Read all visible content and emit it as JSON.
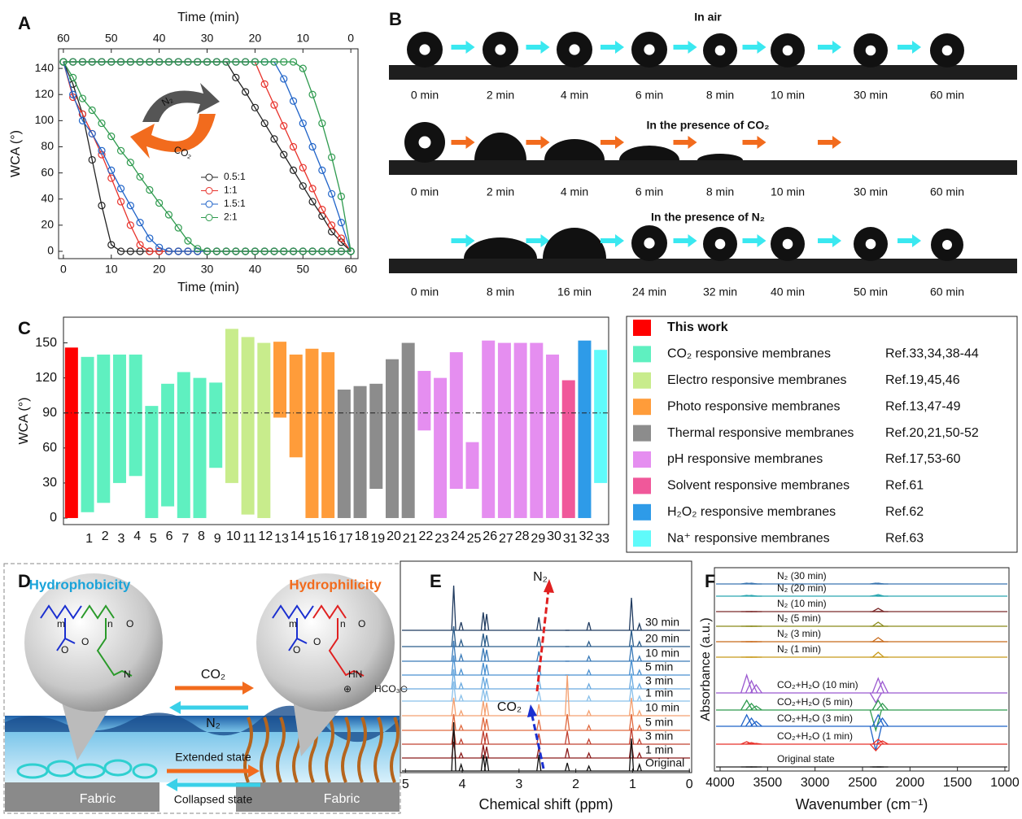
{
  "panel_labels": [
    "A",
    "B",
    "C",
    "D",
    "E",
    "F"
  ],
  "chart_data": [
    {
      "type": "line",
      "x_label": "Time (min)",
      "x2_label": "Time (min)",
      "y_label": "WCA (°)",
      "x": [
        0,
        2,
        4,
        6,
        8,
        10,
        12,
        14,
        16,
        18,
        20,
        22,
        24,
        26,
        28,
        30,
        32,
        34,
        36,
        38,
        40,
        42,
        44,
        46,
        48,
        50,
        52,
        54,
        56,
        58,
        60
      ],
      "xlim": [
        -1,
        61.5
      ],
      "xticks": [
        0,
        10,
        20,
        30,
        40,
        50,
        60
      ],
      "x2ticks": [
        {
          "value": 0,
          "label": "60"
        },
        {
          "value": 10,
          "label": "50"
        },
        {
          "value": 20,
          "label": "40"
        },
        {
          "value": 30,
          "label": "30"
        },
        {
          "value": 40,
          "label": "20"
        },
        {
          "value": 50,
          "label": "10"
        },
        {
          "value": 60,
          "label": "0"
        }
      ],
      "ylim": [
        -5.6,
        155
      ],
      "yticks": [
        0,
        20,
        40,
        60,
        80,
        100,
        120,
        140
      ],
      "annotations": [
        "N₂",
        "CO₂"
      ],
      "series": [
        {
          "name": "0.5:1",
          "color": "#222222",
          "values": [
            145,
            128,
            105,
            70,
            35,
            5,
            0,
            0,
            0,
            0,
            0,
            0,
            0,
            0,
            0,
            0,
            0,
            0,
            0,
            0,
            0,
            0,
            0,
            0,
            0,
            0,
            0,
            0,
            0,
            0,
            0
          ],
          "values2": [
            145,
            145,
            145,
            145,
            145,
            145,
            145,
            145,
            145,
            145,
            145,
            145,
            145,
            145,
            145,
            145,
            145,
            145,
            133,
            122,
            110,
            98,
            86,
            74,
            62,
            50,
            38,
            27,
            15,
            7,
            0
          ]
        },
        {
          "name": "1:1",
          "color": "#e8322b",
          "values": [
            145,
            118,
            105,
            90,
            74,
            56,
            38,
            20,
            5,
            0,
            0,
            0,
            0,
            0,
            0,
            0,
            0,
            0,
            0,
            0,
            0,
            0,
            0,
            0,
            0,
            0,
            0,
            0,
            0,
            0,
            0
          ],
          "values2": [
            145,
            145,
            145,
            145,
            145,
            145,
            145,
            145,
            145,
            145,
            145,
            145,
            145,
            145,
            145,
            145,
            145,
            145,
            145,
            145,
            145,
            128,
            112,
            96,
            80,
            64,
            48,
            32,
            20,
            10,
            0
          ]
        },
        {
          "name": "1.5:1",
          "color": "#1f63c8",
          "values": [
            145,
            120,
            100,
            90,
            77,
            62,
            48,
            35,
            22,
            10,
            3,
            0,
            0,
            0,
            0,
            0,
            0,
            0,
            0,
            0,
            0,
            0,
            0,
            0,
            0,
            0,
            0,
            0,
            0,
            0,
            0
          ],
          "values2": [
            145,
            145,
            145,
            145,
            145,
            145,
            145,
            145,
            145,
            145,
            145,
            145,
            145,
            145,
            145,
            145,
            145,
            145,
            145,
            145,
            145,
            145,
            145,
            132,
            115,
            98,
            80,
            62,
            44,
            22,
            0
          ]
        },
        {
          "name": "2:1",
          "color": "#2e9a4e",
          "values": [
            145,
            133,
            117,
            108,
            98,
            88,
            77,
            68,
            57,
            47,
            37,
            28,
            18,
            8,
            2,
            0,
            0,
            0,
            0,
            0,
            0,
            0,
            0,
            0,
            0,
            0,
            0,
            0,
            0,
            0,
            0
          ],
          "values2": [
            145,
            145,
            145,
            145,
            145,
            145,
            145,
            145,
            145,
            145,
            145,
            145,
            145,
            145,
            145,
            145,
            145,
            145,
            145,
            145,
            145,
            145,
            145,
            145,
            145,
            140,
            120,
            98,
            72,
            42,
            0
          ]
        }
      ]
    },
    {
      "type": "floating_bar",
      "y_label": "WCA (°)",
      "ylim": [
        -5.6,
        172
      ],
      "yticks": [
        0,
        30,
        60,
        90,
        120,
        150
      ],
      "reference_line": 90,
      "series": [
        {
          "name": "This work",
          "color": "#ff0000",
          "categories": [
            null
          ],
          "low": [
            0
          ],
          "high": [
            146
          ]
        },
        {
          "name": "CO₂ responsive membranes",
          "ref": "Ref.33,34,38-44",
          "color": "#5ff0c0",
          "categories": [
            "1",
            "2",
            "3",
            "4",
            "5",
            "6",
            "7",
            "8",
            "9"
          ],
          "low": [
            5,
            13,
            30,
            36,
            0,
            10,
            0,
            0,
            43
          ],
          "high": [
            138,
            140,
            140,
            140,
            96,
            115,
            125,
            120,
            116
          ]
        },
        {
          "name": "Electro responsive membranes",
          "ref": "Ref.19,45,46",
          "color": "#c8ec8c",
          "categories": [
            "10",
            "11",
            "12"
          ],
          "low": [
            30,
            3,
            0
          ],
          "high": [
            162,
            155,
            150
          ]
        },
        {
          "name": "Photo responsive membranes",
          "ref": "Ref.13,47-49",
          "color": "#ff9c3a",
          "categories": [
            "13",
            "14",
            "15",
            "16"
          ],
          "low": [
            86,
            52,
            0,
            0
          ],
          "high": [
            151,
            140,
            145,
            142
          ]
        },
        {
          "name": "Thermal responsive membranes",
          "ref": "Ref.20,21,50-52",
          "color": "#8c8c8c",
          "categories": [
            "17",
            "18",
            "19",
            "20",
            "21"
          ],
          "low": [
            0,
            0,
            25,
            0,
            0
          ],
          "high": [
            110,
            113,
            115,
            136,
            150
          ]
        },
        {
          "name": "pH responsive membranes",
          "ref": "Ref.17,53-60",
          "color": "#e58ef0",
          "categories": [
            "22",
            "23",
            "24",
            "25",
            "26",
            "27",
            "28",
            "29",
            "30"
          ],
          "low": [
            75,
            0,
            25,
            25,
            0,
            0,
            0,
            0,
            0
          ],
          "high": [
            126,
            120,
            142,
            65,
            152,
            150,
            150,
            150,
            140
          ]
        },
        {
          "name": "Solvent responsive membranes",
          "ref": "Ref.61",
          "color": "#f0589a",
          "categories": [
            "31"
          ],
          "low": [
            0
          ],
          "high": [
            118
          ]
        },
        {
          "name": "H₂O₂ responsive membranes",
          "ref": "Ref.62",
          "color": "#2e9be8",
          "categories": [
            "32"
          ],
          "low": [
            0
          ],
          "high": [
            152
          ]
        },
        {
          "name": "Na⁺ responsive membranes",
          "ref": "Ref.63",
          "color": "#5ffafa",
          "categories": [
            "33"
          ],
          "low": [
            30
          ],
          "high": [
            144
          ]
        }
      ]
    },
    {
      "type": "spectrum",
      "x_label": "Chemical shift (ppm)",
      "xlim": [
        5.09,
        -0.04
      ],
      "xticks": [
        5,
        4,
        3,
        2,
        1,
        0
      ],
      "annotations": [
        "N₂",
        "CO₂"
      ],
      "peaks": [
        4.15,
        4.02,
        3.63,
        3.57,
        2.65,
        2.15,
        1.77,
        1.02,
        0.88
      ],
      "series": [
        {
          "name": "30 min",
          "color": "#1f3a5f",
          "heights": [
            55,
            10,
            22,
            20,
            16,
            0,
            10,
            40,
            8
          ]
        },
        {
          "name": "20 min",
          "color": "#2b5c8a",
          "heights": [
            25,
            8,
            16,
            14,
            12,
            0,
            6,
            20,
            6
          ]
        },
        {
          "name": "10 min",
          "color": "#3a7ab8",
          "heights": [
            25,
            8,
            16,
            14,
            12,
            0,
            6,
            20,
            6
          ]
        },
        {
          "name": "5 min",
          "color": "#4a90d0",
          "heights": [
            24,
            7,
            15,
            13,
            12,
            0,
            6,
            19,
            6
          ]
        },
        {
          "name": "3 min",
          "color": "#6aaae0",
          "heights": [
            24,
            7,
            15,
            13,
            12,
            0,
            6,
            19,
            6
          ]
        },
        {
          "name": "1 min",
          "color": "#8ac0ea",
          "heights": [
            24,
            7,
            15,
            13,
            12,
            0,
            6,
            19,
            6
          ]
        },
        {
          "name": "10 min",
          "color": "#f4a070",
          "heights": [
            22,
            6,
            18,
            16,
            14,
            50,
            6,
            22,
            6
          ]
        },
        {
          "name": "5 min",
          "color": "#e06a40",
          "heights": [
            20,
            6,
            16,
            14,
            13,
            20,
            6,
            20,
            6
          ]
        },
        {
          "name": "3 min",
          "color": "#c04030",
          "heights": [
            20,
            6,
            16,
            14,
            13,
            16,
            6,
            20,
            6
          ]
        },
        {
          "name": "1 min",
          "color": "#8b1a1a",
          "heights": [
            20,
            6,
            16,
            14,
            13,
            12,
            6,
            20,
            6
          ]
        },
        {
          "name": "Original",
          "color": "#111111",
          "heights": [
            60,
            8,
            20,
            18,
            20,
            10,
            6,
            40,
            8
          ]
        }
      ]
    },
    {
      "type": "spectrum",
      "x_label": "Wavenumber (cm⁻¹)",
      "y_label": "Absorbance (a.u.)",
      "xlim": [
        4060,
        957
      ],
      "xticks": [
        4000,
        3500,
        3000,
        2500,
        2000,
        1500,
        1000
      ],
      "peaks": [
        3720,
        3670,
        3620,
        2360,
        2335,
        2290
      ],
      "series": [
        {
          "name": "N₂ (30 min)",
          "color": "#3a75b0",
          "heights": [
            1,
            1,
            0,
            1,
            1,
            0
          ]
        },
        {
          "name": "N₂ (20 min)",
          "color": "#2aa6b0",
          "heights": [
            1,
            1,
            0,
            1,
            2,
            0
          ]
        },
        {
          "name": "N₂ (10 min)",
          "color": "#7b2b2b",
          "heights": [
            0,
            0,
            0,
            0,
            4,
            0
          ]
        },
        {
          "name": "N₂ (5 min)",
          "color": "#8a8a1a",
          "heights": [
            0,
            0,
            0,
            0,
            5,
            0
          ]
        },
        {
          "name": "N₂ (3 min)",
          "color": "#c86a1a",
          "heights": [
            0,
            0,
            0,
            0,
            5,
            0
          ]
        },
        {
          "name": "N₂ (1 min)",
          "color": "#c89a1a",
          "heights": [
            0,
            0,
            0,
            0,
            6,
            0
          ]
        },
        {
          "name": "CO₂+H₂O (10 min)",
          "color": "#9b59d0",
          "heights": [
            22,
            15,
            10,
            -12,
            18,
            14
          ]
        },
        {
          "name": "CO₂+H₂O (5 min)",
          "color": "#2e9a4e",
          "heights": [
            12,
            8,
            5,
            -25,
            12,
            8
          ]
        },
        {
          "name": "CO₂+H₂O (3 min)",
          "color": "#1f63c8",
          "heights": [
            14,
            10,
            6,
            -30,
            14,
            10
          ]
        },
        {
          "name": "CO₂+H₂O (1 min)",
          "color": "#e8322b",
          "heights": [
            3,
            2,
            1,
            -8,
            6,
            4
          ]
        },
        {
          "name": "Original state",
          "color": "#222222",
          "heights": [
            0,
            0,
            0,
            0,
            0,
            0
          ]
        }
      ]
    }
  ],
  "panel_B": {
    "rows": [
      {
        "title": "In air",
        "times": [
          "0 min",
          "2 min",
          "4 min",
          "6 min",
          "8 min",
          "10 min",
          "30 min",
          "60 min"
        ]
      },
      {
        "title": "In the presence of CO₂",
        "times": [
          "0 min",
          "2 min",
          "4 min",
          "6 min",
          "8 min",
          "10 min",
          "30 min",
          "60 min"
        ]
      },
      {
        "title": "In the presence of N₂",
        "times": [
          "0 min",
          "8 min",
          "16 min",
          "24 min",
          "32 min",
          "40 min",
          "50 min",
          "60 min"
        ]
      }
    ]
  },
  "panel_D": {
    "left_title": "Hydrophobicity",
    "right_title": "Hydrophilicity",
    "forward": "CO₂",
    "backward": "N₂",
    "extended": "Extended state",
    "collapsed": "Collapsed state",
    "fabric_left": "Fabric",
    "fabric_right": "Fabric",
    "left_chem": [
      "m",
      "n",
      "O",
      "O",
      "O",
      "N"
    ],
    "right_chem": [
      "m",
      "n",
      "O",
      "O",
      "O",
      "HN",
      "⊕",
      "HCO₃⊖"
    ]
  }
}
